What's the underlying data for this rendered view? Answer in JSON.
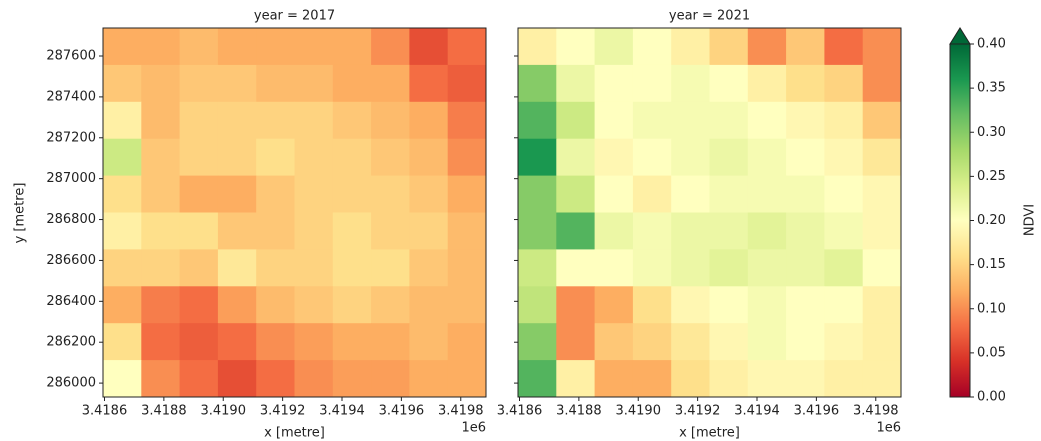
{
  "chart_data": {
    "type": "heatmap",
    "x_label": "x [metre]",
    "y_label": "y [metre]",
    "x_offset_label": "1e6",
    "xlim": [
      3418595,
      3419885
    ],
    "xticks": [
      {
        "value": 3418600,
        "label": "3.4186"
      },
      {
        "value": 3418800,
        "label": "3.4188"
      },
      {
        "value": 3419000,
        "label": "3.4190"
      },
      {
        "value": 3419200,
        "label": "3.4192"
      },
      {
        "value": 3419400,
        "label": "3.4194"
      },
      {
        "value": 3419600,
        "label": "3.4196"
      },
      {
        "value": 3419800,
        "label": "3.4198"
      }
    ],
    "ylim": [
      285932,
      287737
    ],
    "yticks": [
      286000,
      286200,
      286400,
      286600,
      286800,
      287000,
      287200,
      287400,
      287600
    ],
    "panels": [
      {
        "title": "year = 2017",
        "values": [
          [
            0.12,
            0.12,
            0.13,
            0.12,
            0.12,
            0.12,
            0.12,
            0.1,
            0.06,
            0.08
          ],
          [
            0.14,
            0.13,
            0.14,
            0.14,
            0.13,
            0.13,
            0.12,
            0.12,
            0.08,
            0.07
          ],
          [
            0.18,
            0.13,
            0.15,
            0.15,
            0.15,
            0.15,
            0.14,
            0.13,
            0.12,
            0.09
          ],
          [
            0.25,
            0.14,
            0.15,
            0.15,
            0.16,
            0.15,
            0.15,
            0.14,
            0.13,
            0.1
          ],
          [
            0.16,
            0.14,
            0.12,
            0.12,
            0.14,
            0.15,
            0.15,
            0.15,
            0.14,
            0.12
          ],
          [
            0.18,
            0.16,
            0.16,
            0.14,
            0.14,
            0.15,
            0.16,
            0.15,
            0.15,
            0.13
          ],
          [
            0.15,
            0.15,
            0.14,
            0.17,
            0.15,
            0.15,
            0.16,
            0.16,
            0.14,
            0.13
          ],
          [
            0.12,
            0.09,
            0.08,
            0.11,
            0.13,
            0.14,
            0.15,
            0.14,
            0.13,
            0.13
          ],
          [
            0.16,
            0.08,
            0.07,
            0.08,
            0.1,
            0.11,
            0.12,
            0.12,
            0.13,
            0.12
          ],
          [
            0.2,
            0.1,
            0.08,
            0.06,
            0.08,
            0.1,
            0.11,
            0.11,
            0.12,
            0.12
          ]
        ]
      },
      {
        "title": "year = 2021",
        "values": [
          [
            0.18,
            0.2,
            0.22,
            0.2,
            0.18,
            0.15,
            0.1,
            0.14,
            0.08,
            0.1
          ],
          [
            0.3,
            0.22,
            0.2,
            0.2,
            0.21,
            0.2,
            0.18,
            0.16,
            0.15,
            0.1
          ],
          [
            0.33,
            0.25,
            0.2,
            0.21,
            0.21,
            0.21,
            0.2,
            0.19,
            0.18,
            0.14
          ],
          [
            0.36,
            0.22,
            0.19,
            0.2,
            0.21,
            0.22,
            0.21,
            0.2,
            0.19,
            0.17
          ],
          [
            0.3,
            0.25,
            0.2,
            0.18,
            0.2,
            0.21,
            0.21,
            0.21,
            0.2,
            0.19
          ],
          [
            0.3,
            0.33,
            0.22,
            0.21,
            0.22,
            0.22,
            0.23,
            0.22,
            0.21,
            0.19
          ],
          [
            0.25,
            0.2,
            0.2,
            0.21,
            0.22,
            0.23,
            0.22,
            0.22,
            0.23,
            0.2
          ],
          [
            0.26,
            0.1,
            0.12,
            0.16,
            0.19,
            0.2,
            0.21,
            0.2,
            0.2,
            0.18
          ],
          [
            0.3,
            0.1,
            0.14,
            0.15,
            0.17,
            0.19,
            0.21,
            0.2,
            0.19,
            0.18
          ],
          [
            0.33,
            0.18,
            0.12,
            0.12,
            0.16,
            0.18,
            0.19,
            0.19,
            0.18,
            0.18
          ]
        ]
      }
    ],
    "colorbar": {
      "label": "NDVI",
      "colormap": "RdYlGn",
      "extend": "max",
      "lim": [
        0,
        0.4
      ],
      "ticks": [
        {
          "value": 0,
          "label": "0.00"
        },
        {
          "value": 0.05,
          "label": "0.05"
        },
        {
          "value": 0.1,
          "label": "0.10"
        },
        {
          "value": 0.15,
          "label": "0.15"
        },
        {
          "value": 0.2,
          "label": "0.20"
        },
        {
          "value": 0.25,
          "label": "0.25"
        },
        {
          "value": 0.3,
          "label": "0.30"
        },
        {
          "value": 0.35,
          "label": "0.35"
        },
        {
          "value": 0.4,
          "label": "0.40"
        }
      ]
    }
  }
}
